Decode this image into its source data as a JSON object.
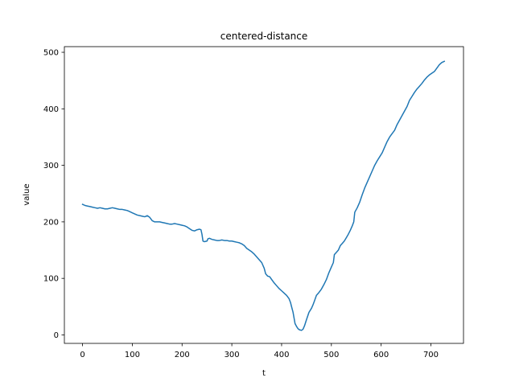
{
  "chart_data": {
    "type": "line",
    "title": "centered-distance",
    "xlabel": "t",
    "ylabel": "value",
    "xlim": [
      -36.5,
      765.5
    ],
    "ylim": [
      -15,
      510
    ],
    "xticks": [
      0,
      100,
      200,
      300,
      400,
      500,
      600,
      700
    ],
    "yticks": [
      0,
      100,
      200,
      300,
      400,
      500
    ],
    "grid": false,
    "series": [
      {
        "color": "#1f77b4",
        "points": [
          [
            0,
            231
          ],
          [
            5,
            229
          ],
          [
            10,
            228
          ],
          [
            15,
            227
          ],
          [
            20,
            226
          ],
          [
            25,
            225
          ],
          [
            30,
            224
          ],
          [
            35,
            225
          ],
          [
            40,
            224
          ],
          [
            45,
            223
          ],
          [
            50,
            223
          ],
          [
            55,
            224
          ],
          [
            60,
            225
          ],
          [
            65,
            224
          ],
          [
            70,
            223
          ],
          [
            75,
            222
          ],
          [
            80,
            222
          ],
          [
            85,
            221
          ],
          [
            90,
            220
          ],
          [
            95,
            218
          ],
          [
            100,
            216
          ],
          [
            105,
            214
          ],
          [
            110,
            212
          ],
          [
            115,
            211
          ],
          [
            120,
            210
          ],
          [
            125,
            209
          ],
          [
            130,
            211
          ],
          [
            135,
            208
          ],
          [
            140,
            202
          ],
          [
            145,
            200
          ],
          [
            150,
            200
          ],
          [
            155,
            200
          ],
          [
            160,
            199
          ],
          [
            165,
            198
          ],
          [
            170,
            197
          ],
          [
            175,
            196
          ],
          [
            180,
            196
          ],
          [
            185,
            197
          ],
          [
            190,
            196
          ],
          [
            195,
            195
          ],
          [
            200,
            194
          ],
          [
            205,
            193
          ],
          [
            210,
            191
          ],
          [
            215,
            188
          ],
          [
            220,
            185
          ],
          [
            225,
            184
          ],
          [
            230,
            186
          ],
          [
            235,
            187
          ],
          [
            238,
            186
          ],
          [
            240,
            178
          ],
          [
            242,
            166
          ],
          [
            245,
            165
          ],
          [
            250,
            166
          ],
          [
            252,
            170
          ],
          [
            255,
            171
          ],
          [
            260,
            169
          ],
          [
            265,
            168
          ],
          [
            270,
            167
          ],
          [
            275,
            167
          ],
          [
            280,
            168
          ],
          [
            285,
            167
          ],
          [
            290,
            167
          ],
          [
            295,
            166
          ],
          [
            300,
            166
          ],
          [
            305,
            165
          ],
          [
            310,
            164
          ],
          [
            315,
            163
          ],
          [
            320,
            161
          ],
          [
            325,
            158
          ],
          [
            330,
            153
          ],
          [
            335,
            150
          ],
          [
            340,
            147
          ],
          [
            345,
            143
          ],
          [
            350,
            138
          ],
          [
            355,
            133
          ],
          [
            360,
            128
          ],
          [
            365,
            118
          ],
          [
            368,
            108
          ],
          [
            372,
            104
          ],
          [
            376,
            103
          ],
          [
            380,
            98
          ],
          [
            385,
            92
          ],
          [
            390,
            87
          ],
          [
            395,
            82
          ],
          [
            400,
            78
          ],
          [
            405,
            74
          ],
          [
            410,
            70
          ],
          [
            415,
            64
          ],
          [
            418,
            57
          ],
          [
            420,
            50
          ],
          [
            423,
            40
          ],
          [
            425,
            30
          ],
          [
            427,
            20
          ],
          [
            430,
            15
          ],
          [
            433,
            11
          ],
          [
            436,
            9
          ],
          [
            440,
            8
          ],
          [
            443,
            10
          ],
          [
            446,
            16
          ],
          [
            450,
            27
          ],
          [
            455,
            40
          ],
          [
            460,
            47
          ],
          [
            463,
            53
          ],
          [
            466,
            60
          ],
          [
            470,
            70
          ],
          [
            475,
            75
          ],
          [
            480,
            81
          ],
          [
            485,
            89
          ],
          [
            490,
            98
          ],
          [
            495,
            110
          ],
          [
            500,
            120
          ],
          [
            504,
            128
          ],
          [
            506,
            142
          ],
          [
            510,
            146
          ],
          [
            514,
            150
          ],
          [
            518,
            158
          ],
          [
            522,
            162
          ],
          [
            526,
            166
          ],
          [
            530,
            172
          ],
          [
            534,
            178
          ],
          [
            538,
            185
          ],
          [
            542,
            193
          ],
          [
            545,
            200
          ],
          [
            547,
            217
          ],
          [
            552,
            225
          ],
          [
            557,
            235
          ],
          [
            562,
            248
          ],
          [
            567,
            260
          ],
          [
            572,
            270
          ],
          [
            577,
            280
          ],
          [
            582,
            290
          ],
          [
            587,
            300
          ],
          [
            592,
            308
          ],
          [
            597,
            315
          ],
          [
            602,
            322
          ],
          [
            607,
            332
          ],
          [
            612,
            342
          ],
          [
            617,
            350
          ],
          [
            622,
            356
          ],
          [
            627,
            362
          ],
          [
            632,
            372
          ],
          [
            637,
            380
          ],
          [
            642,
            388
          ],
          [
            647,
            396
          ],
          [
            652,
            404
          ],
          [
            657,
            415
          ],
          [
            662,
            422
          ],
          [
            667,
            429
          ],
          [
            672,
            435
          ],
          [
            677,
            440
          ],
          [
            682,
            445
          ],
          [
            687,
            451
          ],
          [
            692,
            456
          ],
          [
            697,
            460
          ],
          [
            702,
            463
          ],
          [
            707,
            466
          ],
          [
            712,
            472
          ],
          [
            717,
            478
          ],
          [
            722,
            482
          ],
          [
            727,
            484
          ]
        ]
      }
    ]
  }
}
